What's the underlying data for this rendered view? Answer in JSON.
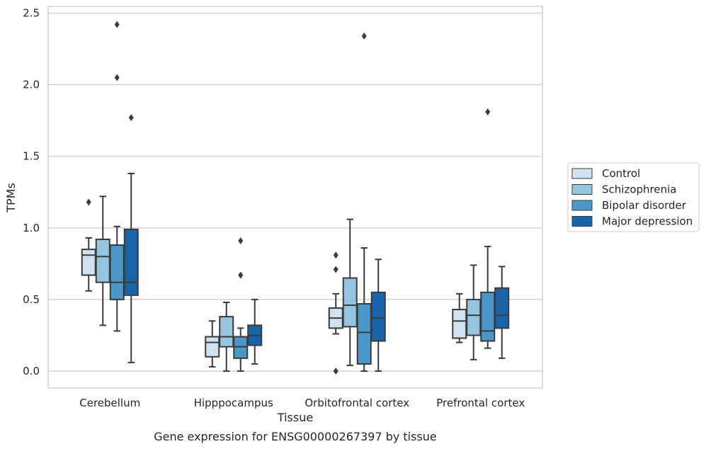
{
  "chart_data": {
    "type": "box",
    "title": "",
    "caption": "Gene expression for ENSG00000267397 by tissue",
    "xlabel": "Tissue",
    "ylabel": "TPMs",
    "ylim": [
      -0.12,
      2.55
    ],
    "yticks": [
      0.0,
      0.5,
      1.0,
      1.5,
      2.0,
      2.5
    ],
    "ytick_labels": [
      "0.0",
      "0.5",
      "1.0",
      "1.5",
      "2.0",
      "2.5"
    ],
    "grid": "horizontal",
    "legend_position": "right",
    "categories": [
      "Cerebellum",
      "Hipppocampus",
      "Orbitofrontal cortex",
      "Prefrontal cortex"
    ],
    "series": [
      {
        "name": "Control",
        "color": "#d0e1f2",
        "boxes": [
          {
            "whisker_low": 0.56,
            "q1": 0.67,
            "median": 0.81,
            "q3": 0.85,
            "whisker_high": 0.93,
            "outliers": [
              1.18
            ]
          },
          {
            "whisker_low": 0.03,
            "q1": 0.1,
            "median": 0.2,
            "q3": 0.24,
            "whisker_high": 0.35,
            "outliers": []
          },
          {
            "whisker_low": 0.26,
            "q1": 0.3,
            "median": 0.37,
            "q3": 0.44,
            "whisker_high": 0.54,
            "outliers": [
              0.0,
              0.71,
              0.81
            ]
          },
          {
            "whisker_low": 0.2,
            "q1": 0.23,
            "median": 0.35,
            "q3": 0.43,
            "whisker_high": 0.54,
            "outliers": []
          }
        ]
      },
      {
        "name": "Schizophrenia",
        "color": "#94c4df",
        "boxes": [
          {
            "whisker_low": 0.32,
            "q1": 0.62,
            "median": 0.8,
            "q3": 0.92,
            "whisker_high": 1.22,
            "outliers": []
          },
          {
            "whisker_low": 0.0,
            "q1": 0.17,
            "median": 0.24,
            "q3": 0.38,
            "whisker_high": 0.48,
            "outliers": []
          },
          {
            "whisker_low": 0.04,
            "q1": 0.31,
            "median": 0.46,
            "q3": 0.65,
            "whisker_high": 1.06,
            "outliers": []
          },
          {
            "whisker_low": 0.08,
            "q1": 0.25,
            "median": 0.39,
            "q3": 0.5,
            "whisker_high": 0.74,
            "outliers": []
          }
        ]
      },
      {
        "name": "Bipolar disorder",
        "color": "#4a98c9",
        "boxes": [
          {
            "whisker_low": 0.28,
            "q1": 0.5,
            "median": 0.62,
            "q3": 0.88,
            "whisker_high": 1.01,
            "outliers": [
              2.05,
              2.42
            ]
          },
          {
            "whisker_low": 0.0,
            "q1": 0.09,
            "median": 0.17,
            "q3": 0.24,
            "whisker_high": 0.3,
            "outliers": [
              0.67,
              0.91
            ]
          },
          {
            "whisker_low": 0.0,
            "q1": 0.05,
            "median": 0.27,
            "q3": 0.47,
            "whisker_high": 0.86,
            "outliers": [
              2.34
            ]
          },
          {
            "whisker_low": 0.16,
            "q1": 0.21,
            "median": 0.28,
            "q3": 0.55,
            "whisker_high": 0.87,
            "outliers": [
              1.81
            ]
          }
        ]
      },
      {
        "name": "Major depression",
        "color": "#1764ab",
        "boxes": [
          {
            "whisker_low": 0.06,
            "q1": 0.53,
            "median": 0.62,
            "q3": 0.99,
            "whisker_high": 1.38,
            "outliers": [
              1.77
            ]
          },
          {
            "whisker_low": 0.05,
            "q1": 0.18,
            "median": 0.25,
            "q3": 0.32,
            "whisker_high": 0.5,
            "outliers": []
          },
          {
            "whisker_low": 0.0,
            "q1": 0.21,
            "median": 0.37,
            "q3": 0.55,
            "whisker_high": 0.78,
            "outliers": []
          },
          {
            "whisker_low": 0.09,
            "q1": 0.3,
            "median": 0.39,
            "q3": 0.58,
            "whisker_high": 0.73,
            "outliers": []
          }
        ]
      }
    ]
  }
}
